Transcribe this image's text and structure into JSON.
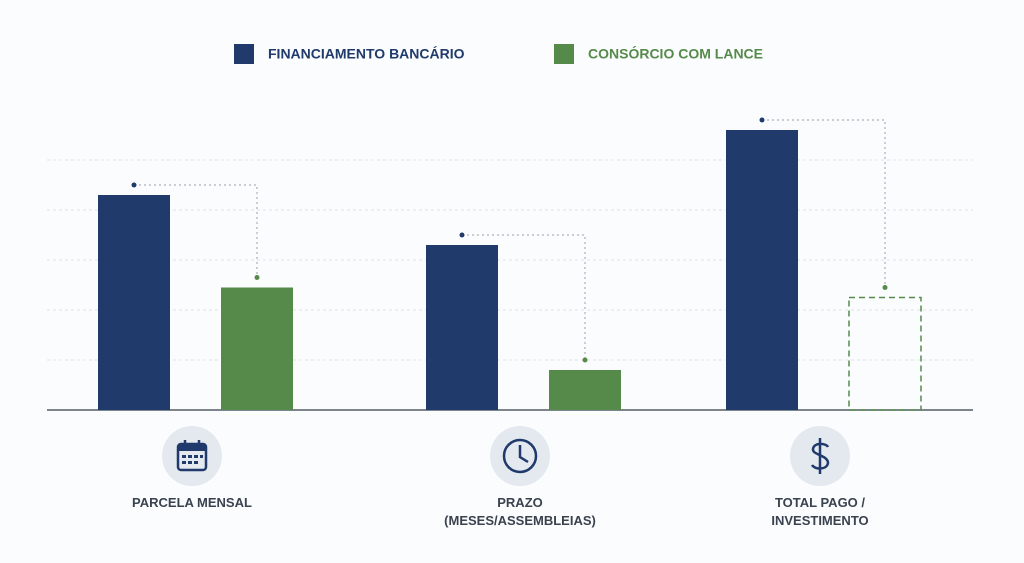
{
  "chart_data": {
    "type": "bar",
    "categories": [
      "PARCELA MENSAL",
      "PRAZO (MESES/ASSEMBLEIAS)",
      "TOTAL PAGO / INVESTIMENTO"
    ],
    "series": [
      {
        "name": "FINANCIAMENTO BANCÁRIO",
        "color": "#1f3a6b",
        "values": [
          4.3,
          3.3,
          5.6
        ]
      },
      {
        "name": "CONSÓRCIO COM LANCE",
        "color": "#558a4a",
        "values": [
          2.45,
          0.8,
          2.25
        ],
        "styles": [
          "solid",
          "solid",
          "dashed"
        ]
      }
    ],
    "ylim": [
      0,
      6
    ],
    "yticks": [
      1,
      2,
      3,
      4,
      5
    ],
    "grid": true,
    "legend": "top"
  }
}
